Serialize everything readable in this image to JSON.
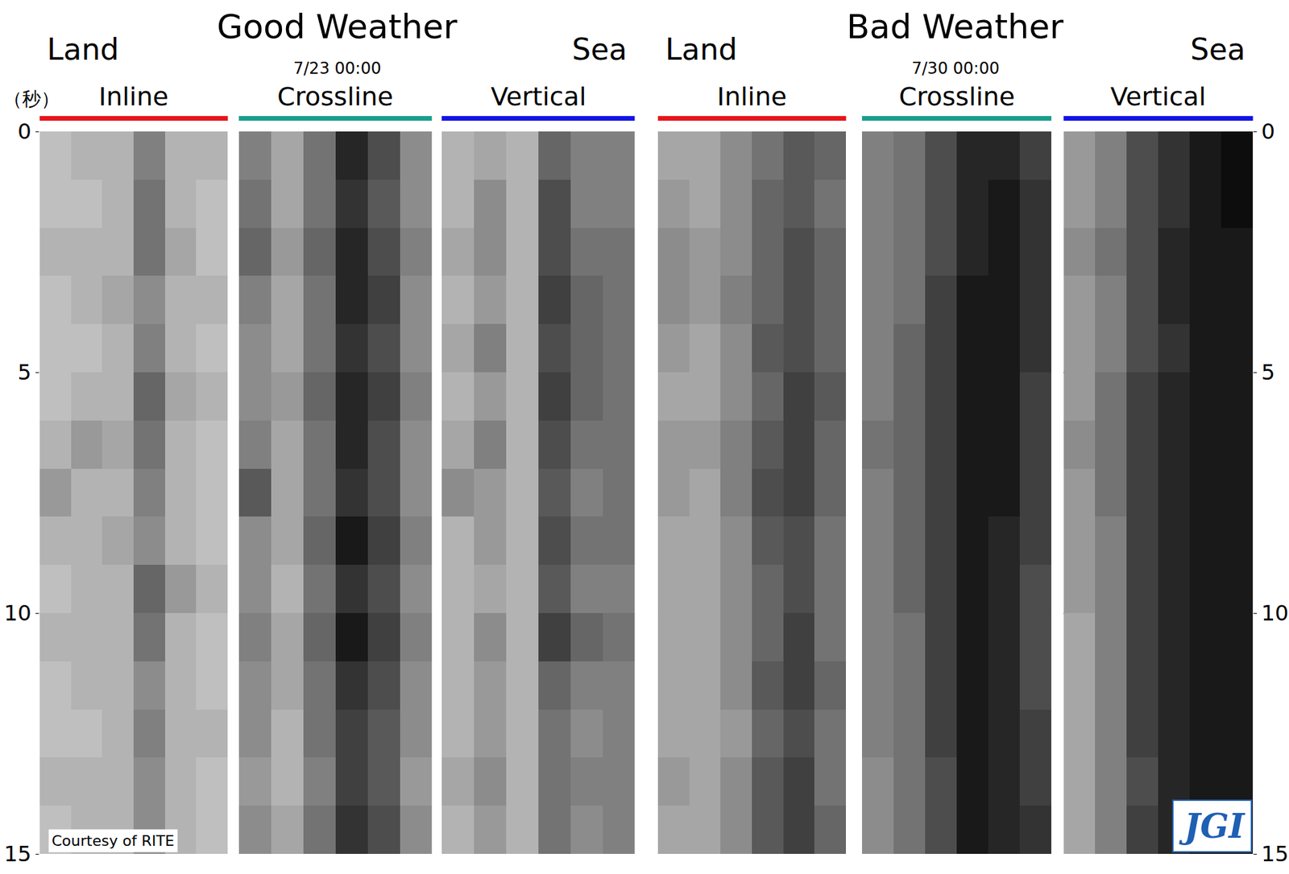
{
  "chart_data": {
    "type": "heatmap",
    "ylabel": "（秒）",
    "ylim": [
      15,
      0
    ],
    "yticks": [
      0,
      5,
      10,
      15
    ],
    "y": [
      0.5,
      1.5,
      2.5,
      3.5,
      4.5,
      5.5,
      6.5,
      7.5,
      8.5,
      9.5,
      10.5,
      11.5,
      12.5,
      13.5,
      14.5
    ],
    "zlim": [
      0,
      1
    ],
    "grid": true,
    "tick_labels": "y",
    "credit": "Courtesy of RITE",
    "logo": "JGI",
    "panels": [
      {
        "title": "Good Weather",
        "subtitle": "7/23 00:00",
        "left_label": "Land",
        "right_label": "Sea",
        "components": [
          {
            "name": "Inline",
            "color": "#e8151b",
            "cells": [
              [
                0.25,
                0.3,
                0.3,
                0.5,
                0.3,
                0.3
              ],
              [
                0.25,
                0.25,
                0.3,
                0.55,
                0.3,
                0.25
              ],
              [
                0.3,
                0.3,
                0.3,
                0.55,
                0.35,
                0.25
              ],
              [
                0.25,
                0.3,
                0.35,
                0.45,
                0.3,
                0.3
              ],
              [
                0.25,
                0.25,
                0.3,
                0.5,
                0.3,
                0.25
              ],
              [
                0.25,
                0.3,
                0.3,
                0.6,
                0.35,
                0.3
              ],
              [
                0.3,
                0.4,
                0.35,
                0.55,
                0.3,
                0.25
              ],
              [
                0.4,
                0.3,
                0.3,
                0.5,
                0.3,
                0.25
              ],
              [
                0.3,
                0.3,
                0.35,
                0.45,
                0.3,
                0.25
              ],
              [
                0.25,
                0.3,
                0.3,
                0.6,
                0.4,
                0.3
              ],
              [
                0.3,
                0.3,
                0.3,
                0.55,
                0.3,
                0.25
              ],
              [
                0.25,
                0.3,
                0.3,
                0.45,
                0.3,
                0.25
              ],
              [
                0.25,
                0.25,
                0.3,
                0.5,
                0.3,
                0.3
              ],
              [
                0.3,
                0.3,
                0.3,
                0.45,
                0.3,
                0.25
              ],
              [
                0.25,
                0.3,
                0.3,
                0.45,
                0.3,
                0.25
              ]
            ]
          },
          {
            "name": "Crossline",
            "color": "#1a9e8f",
            "cells": [
              [
                0.5,
                0.35,
                0.55,
                0.85,
                0.7,
                0.45
              ],
              [
                0.55,
                0.35,
                0.55,
                0.8,
                0.65,
                0.45
              ],
              [
                0.6,
                0.4,
                0.6,
                0.85,
                0.7,
                0.5
              ],
              [
                0.5,
                0.35,
                0.55,
                0.85,
                0.75,
                0.45
              ],
              [
                0.45,
                0.35,
                0.55,
                0.8,
                0.7,
                0.45
              ],
              [
                0.45,
                0.4,
                0.6,
                0.85,
                0.75,
                0.5
              ],
              [
                0.5,
                0.35,
                0.55,
                0.85,
                0.7,
                0.45
              ],
              [
                0.65,
                0.35,
                0.55,
                0.8,
                0.7,
                0.45
              ],
              [
                0.45,
                0.35,
                0.6,
                0.9,
                0.75,
                0.5
              ],
              [
                0.45,
                0.3,
                0.55,
                0.8,
                0.7,
                0.45
              ],
              [
                0.5,
                0.35,
                0.6,
                0.9,
                0.75,
                0.5
              ],
              [
                0.45,
                0.35,
                0.55,
                0.8,
                0.7,
                0.45
              ],
              [
                0.45,
                0.3,
                0.55,
                0.75,
                0.65,
                0.45
              ],
              [
                0.4,
                0.3,
                0.5,
                0.75,
                0.65,
                0.4
              ],
              [
                0.45,
                0.35,
                0.55,
                0.8,
                0.7,
                0.45
              ]
            ]
          },
          {
            "name": "Vertical",
            "color": "#1414e6",
            "cells": [
              [
                0.3,
                0.35,
                0.3,
                0.6,
                0.5,
                0.5
              ],
              [
                0.3,
                0.45,
                0.3,
                0.7,
                0.5,
                0.5
              ],
              [
                0.35,
                0.45,
                0.3,
                0.7,
                0.55,
                0.55
              ],
              [
                0.3,
                0.4,
                0.3,
                0.75,
                0.6,
                0.55
              ],
              [
                0.35,
                0.5,
                0.3,
                0.7,
                0.6,
                0.55
              ],
              [
                0.3,
                0.4,
                0.3,
                0.75,
                0.6,
                0.55
              ],
              [
                0.35,
                0.5,
                0.3,
                0.7,
                0.55,
                0.55
              ],
              [
                0.45,
                0.4,
                0.3,
                0.65,
                0.5,
                0.55
              ],
              [
                0.3,
                0.4,
                0.3,
                0.7,
                0.55,
                0.55
              ],
              [
                0.3,
                0.35,
                0.3,
                0.65,
                0.5,
                0.5
              ],
              [
                0.3,
                0.45,
                0.3,
                0.75,
                0.6,
                0.55
              ],
              [
                0.3,
                0.4,
                0.3,
                0.6,
                0.5,
                0.5
              ],
              [
                0.3,
                0.4,
                0.3,
                0.55,
                0.45,
                0.5
              ],
              [
                0.35,
                0.45,
                0.3,
                0.55,
                0.5,
                0.5
              ],
              [
                0.3,
                0.4,
                0.3,
                0.55,
                0.45,
                0.5
              ]
            ]
          }
        ]
      },
      {
        "title": "Bad Weather",
        "subtitle": "7/30 00:00",
        "left_label": "Land",
        "right_label": "Sea",
        "components": [
          {
            "name": "Inline",
            "color": "#e8151b",
            "cells": [
              [
                0.35,
                0.35,
                0.45,
                0.55,
                0.65,
                0.6
              ],
              [
                0.4,
                0.35,
                0.45,
                0.6,
                0.65,
                0.55
              ],
              [
                0.45,
                0.4,
                0.45,
                0.6,
                0.7,
                0.6
              ],
              [
                0.45,
                0.4,
                0.5,
                0.6,
                0.7,
                0.6
              ],
              [
                0.4,
                0.35,
                0.45,
                0.65,
                0.7,
                0.6
              ],
              [
                0.35,
                0.35,
                0.45,
                0.6,
                0.75,
                0.65
              ],
              [
                0.4,
                0.4,
                0.5,
                0.65,
                0.75,
                0.6
              ],
              [
                0.4,
                0.35,
                0.5,
                0.7,
                0.75,
                0.6
              ],
              [
                0.35,
                0.35,
                0.45,
                0.65,
                0.7,
                0.55
              ],
              [
                0.35,
                0.35,
                0.45,
                0.6,
                0.7,
                0.55
              ],
              [
                0.35,
                0.35,
                0.45,
                0.6,
                0.75,
                0.55
              ],
              [
                0.35,
                0.35,
                0.45,
                0.65,
                0.75,
                0.6
              ],
              [
                0.35,
                0.35,
                0.4,
                0.6,
                0.7,
                0.55
              ],
              [
                0.4,
                0.35,
                0.45,
                0.65,
                0.75,
                0.55
              ],
              [
                0.35,
                0.35,
                0.45,
                0.65,
                0.75,
                0.6
              ]
            ]
          },
          {
            "name": "Crossline",
            "color": "#1a9e8f",
            "cells": [
              [
                0.5,
                0.55,
                0.7,
                0.85,
                0.85,
                0.75
              ],
              [
                0.5,
                0.55,
                0.7,
                0.85,
                0.9,
                0.8
              ],
              [
                0.5,
                0.55,
                0.7,
                0.85,
                0.9,
                0.8
              ],
              [
                0.5,
                0.55,
                0.75,
                0.9,
                0.9,
                0.8
              ],
              [
                0.5,
                0.6,
                0.75,
                0.9,
                0.9,
                0.8
              ],
              [
                0.5,
                0.6,
                0.75,
                0.9,
                0.9,
                0.75
              ],
              [
                0.55,
                0.6,
                0.75,
                0.9,
                0.9,
                0.75
              ],
              [
                0.5,
                0.6,
                0.75,
                0.9,
                0.9,
                0.75
              ],
              [
                0.5,
                0.6,
                0.75,
                0.9,
                0.85,
                0.75
              ],
              [
                0.5,
                0.6,
                0.75,
                0.9,
                0.85,
                0.7
              ],
              [
                0.5,
                0.55,
                0.75,
                0.9,
                0.85,
                0.7
              ],
              [
                0.5,
                0.55,
                0.75,
                0.9,
                0.85,
                0.7
              ],
              [
                0.5,
                0.55,
                0.75,
                0.9,
                0.85,
                0.75
              ],
              [
                0.45,
                0.55,
                0.7,
                0.9,
                0.85,
                0.75
              ],
              [
                0.45,
                0.55,
                0.7,
                0.9,
                0.85,
                0.8
              ]
            ]
          },
          {
            "name": "Vertical",
            "color": "#1414e6",
            "cells": [
              [
                0.4,
                0.5,
                0.7,
                0.8,
                0.9,
                0.95
              ],
              [
                0.4,
                0.5,
                0.7,
                0.8,
                0.9,
                0.95
              ],
              [
                0.45,
                0.55,
                0.7,
                0.85,
                0.9,
                0.9
              ],
              [
                0.4,
                0.5,
                0.7,
                0.85,
                0.9,
                0.9
              ],
              [
                0.4,
                0.5,
                0.7,
                0.8,
                0.9,
                0.9
              ],
              [
                0.4,
                0.55,
                0.75,
                0.85,
                0.9,
                0.9
              ],
              [
                0.45,
                0.55,
                0.75,
                0.85,
                0.9,
                0.9
              ],
              [
                0.4,
                0.55,
                0.75,
                0.85,
                0.9,
                0.9
              ],
              [
                0.4,
                0.5,
                0.75,
                0.85,
                0.9,
                0.9
              ],
              [
                0.4,
                0.5,
                0.75,
                0.85,
                0.9,
                0.9
              ],
              [
                0.35,
                0.5,
                0.75,
                0.85,
                0.9,
                0.9
              ],
              [
                0.35,
                0.5,
                0.75,
                0.85,
                0.9,
                0.9
              ],
              [
                0.35,
                0.5,
                0.75,
                0.85,
                0.9,
                0.9
              ],
              [
                0.35,
                0.5,
                0.7,
                0.85,
                0.9,
                0.9
              ],
              [
                0.35,
                0.5,
                0.75,
                0.85,
                0.9,
                0.9
              ]
            ]
          }
        ]
      }
    ]
  }
}
